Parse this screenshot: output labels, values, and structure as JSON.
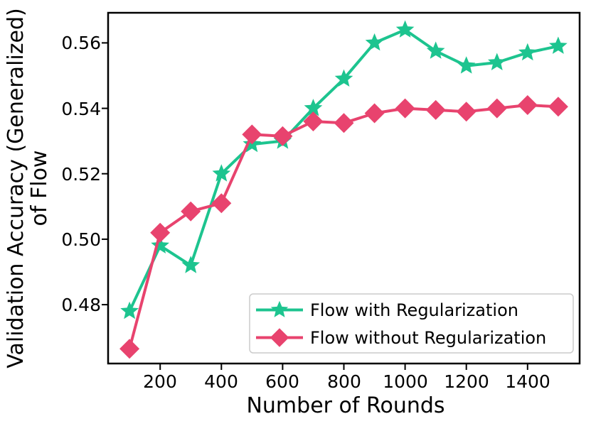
{
  "chart_data": {
    "type": "line",
    "title": "",
    "xlabel": "Number of Rounds",
    "ylabel_lines": [
      "Validation Accuracy (Generalized)",
      "of Flow"
    ],
    "x": [
      100,
      200,
      300,
      400,
      500,
      600,
      700,
      800,
      900,
      1000,
      1100,
      1200,
      1300,
      1400,
      1500
    ],
    "series": [
      {
        "name": "Flow with Regularization",
        "marker": "star",
        "color": "#1dc48f",
        "values": [
          0.478,
          0.498,
          0.492,
          0.52,
          0.529,
          0.53,
          0.54,
          0.549,
          0.56,
          0.564,
          0.5575,
          0.553,
          0.554,
          0.557,
          0.559
        ]
      },
      {
        "name": "Flow without Regularization",
        "marker": "diamond",
        "color": "#e8436e",
        "values": [
          0.4665,
          0.502,
          0.5085,
          0.511,
          0.532,
          0.5315,
          0.536,
          0.5355,
          0.5385,
          0.54,
          0.5395,
          0.539,
          0.54,
          0.541,
          0.5405
        ]
      }
    ],
    "xticks": [
      200,
      400,
      600,
      800,
      1000,
      1200,
      1400
    ],
    "xtick_labels": [
      "200",
      "400",
      "600",
      "800",
      "1000",
      "1200",
      "1400"
    ],
    "yticks": [
      0.48,
      0.5,
      0.52,
      0.54,
      0.56
    ],
    "ytick_labels": [
      "0.48",
      "0.50",
      "0.52",
      "0.54",
      "0.56"
    ],
    "xlim": [
      30,
      1570
    ],
    "ylim": [
      0.462,
      0.5692
    ],
    "grid": false,
    "legend_position": "lower right",
    "colors": {
      "axis": "#000000",
      "text": "#000000",
      "background": "#ffffff",
      "legend_border": "#cccccc",
      "legend_background": "#ffffff"
    }
  }
}
